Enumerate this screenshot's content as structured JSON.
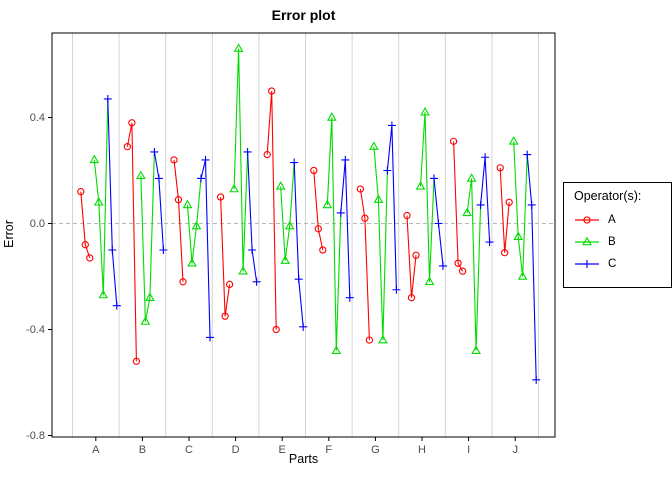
{
  "title": "Error plot",
  "x_axis": {
    "label": "Parts",
    "ticks": [
      "A",
      "B",
      "C",
      "D",
      "E",
      "F",
      "G",
      "H",
      "I",
      "J"
    ]
  },
  "y_axis": {
    "label": "Error",
    "ticks": [
      "0.4",
      "0.0",
      "-0.4",
      "-0.8"
    ],
    "tick_values": [
      0.4,
      0.0,
      -0.4,
      -0.8
    ]
  },
  "legend": {
    "title": "Operator(s):",
    "items": [
      {
        "label": "A",
        "color": "#ff0000",
        "marker": "circle"
      },
      {
        "label": "B",
        "color": "#00dc00",
        "marker": "triangle"
      },
      {
        "label": "C",
        "color": "#0000ff",
        "marker": "plus"
      }
    ]
  },
  "colors": {
    "grid": "#d4d4d4",
    "zero_line": "#b8b8b8",
    "panel_border": "#000000",
    "tick_text": "#4d4d4d"
  },
  "chart_data": {
    "type": "line",
    "title": "Error plot",
    "xlabel": "Parts",
    "ylabel": "Error",
    "ylim": [
      -0.8,
      0.7
    ],
    "grid": "vertical-separators-only",
    "zero_reference_line": true,
    "legend_position": "right",
    "categories": [
      "A",
      "B",
      "C",
      "D",
      "E",
      "F",
      "G",
      "H",
      "I",
      "J"
    ],
    "trials_per_operator": 3,
    "series": [
      {
        "name": "A",
        "marker": "circle",
        "color": "#ff0000",
        "values_by_part": [
          [
            0.12,
            -0.08,
            -0.13
          ],
          [
            0.29,
            0.38,
            -0.52
          ],
          [
            0.24,
            0.09,
            -0.22
          ],
          [
            0.1,
            -0.35,
            -0.23
          ],
          [
            0.26,
            0.5,
            -0.4
          ],
          [
            0.2,
            -0.02,
            -0.1
          ],
          [
            0.13,
            0.02,
            -0.44
          ],
          [
            0.03,
            -0.28,
            -0.12
          ],
          [
            0.31,
            -0.15,
            -0.18
          ],
          [
            0.21,
            -0.11,
            0.08
          ]
        ]
      },
      {
        "name": "B",
        "marker": "triangle",
        "color": "#00dc00",
        "values_by_part": [
          [
            0.24,
            0.08,
            -0.27
          ],
          [
            0.18,
            -0.37,
            -0.28
          ],
          [
            0.07,
            -0.15,
            -0.01
          ],
          [
            0.13,
            0.66,
            -0.18
          ],
          [
            0.14,
            -0.14,
            -0.01
          ],
          [
            0.07,
            0.4,
            -0.48
          ],
          [
            0.29,
            0.09,
            -0.44
          ],
          [
            0.14,
            0.42,
            -0.22
          ],
          [
            0.04,
            0.17,
            -0.48
          ],
          [
            0.31,
            -0.05,
            -0.2
          ]
        ]
      },
      {
        "name": "C",
        "marker": "plus",
        "color": "#0000ff",
        "values_by_part": [
          [
            0.47,
            -0.1,
            -0.31
          ],
          [
            0.27,
            0.17,
            -0.1
          ],
          [
            0.17,
            0.24,
            -0.43
          ],
          [
            0.27,
            -0.1,
            -0.22
          ],
          [
            0.23,
            -0.21,
            -0.39
          ],
          [
            0.04,
            0.24,
            -0.28
          ],
          [
            0.2,
            0.37,
            -0.25
          ],
          [
            0.17,
            0.0,
            -0.16
          ],
          [
            0.07,
            0.25,
            -0.07
          ],
          [
            0.26,
            0.07,
            -0.59
          ]
        ]
      }
    ]
  }
}
